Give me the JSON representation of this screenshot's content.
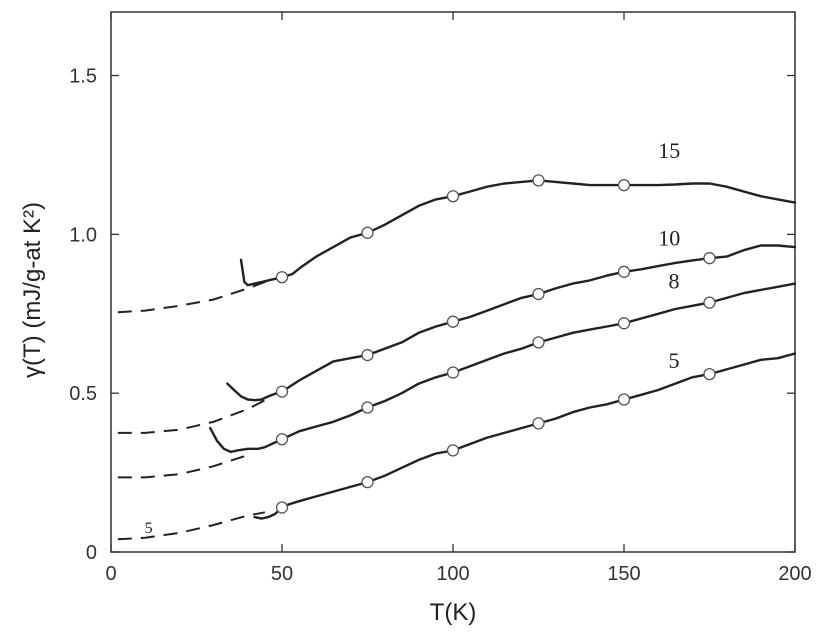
{
  "chart_data": {
    "type": "line",
    "xlabel": "T(K)",
    "ylabel": "γ(T)  (mJ/g-at K²)",
    "xlim": [
      0,
      200
    ],
    "ylim": [
      0,
      1.7
    ],
    "xticks": [
      0,
      50,
      100,
      150,
      200
    ],
    "xtick_labels": [
      "0",
      "50",
      "100",
      "150",
      "200"
    ],
    "yticks": [
      0,
      0.5,
      1.0,
      1.5
    ],
    "ytick_labels": [
      "0",
      "0.5",
      "1.0",
      "1.5"
    ],
    "grid": false,
    "line_color": "#222222",
    "marker_fill": "#ffffff",
    "series": [
      {
        "name": "15",
        "solid": {
          "x": [
            38,
            39,
            40,
            42,
            44,
            46,
            48,
            50,
            53,
            56,
            60,
            65,
            70,
            75,
            80,
            85,
            90,
            95,
            100,
            105,
            110,
            115,
            120,
            125,
            130,
            135,
            140,
            145,
            150,
            155,
            160,
            165,
            170,
            175,
            180,
            185,
            190,
            195,
            200
          ],
          "y": [
            0.92,
            0.85,
            0.84,
            0.845,
            0.85,
            0.855,
            0.86,
            0.865,
            0.875,
            0.9,
            0.93,
            0.96,
            0.99,
            1.005,
            1.03,
            1.06,
            1.09,
            1.11,
            1.12,
            1.135,
            1.15,
            1.16,
            1.165,
            1.17,
            1.165,
            1.16,
            1.155,
            1.155,
            1.155,
            1.155,
            1.155,
            1.157,
            1.16,
            1.16,
            1.15,
            1.135,
            1.12,
            1.11,
            1.1
          ]
        },
        "dashed": {
          "x": [
            2,
            10,
            20,
            30,
            40,
            45,
            50
          ],
          "y": [
            0.755,
            0.76,
            0.775,
            0.795,
            0.83,
            0.85,
            0.865
          ]
        },
        "markers": {
          "x": [
            50,
            75,
            100,
            125,
            150
          ],
          "y": [
            0.865,
            1.005,
            1.12,
            1.17,
            1.155
          ]
        },
        "label_at": [
          160,
          1.24
        ]
      },
      {
        "name": "10",
        "solid": {
          "x": [
            34,
            36,
            38,
            40,
            42,
            44,
            46,
            48,
            50,
            55,
            60,
            65,
            70,
            75,
            80,
            85,
            90,
            95,
            100,
            105,
            110,
            115,
            120,
            125,
            130,
            135,
            140,
            145,
            150,
            155,
            160,
            165,
            170,
            175,
            180,
            185,
            190,
            195,
            200
          ],
          "y": [
            0.53,
            0.51,
            0.49,
            0.48,
            0.478,
            0.48,
            0.49,
            0.498,
            0.505,
            0.54,
            0.57,
            0.6,
            0.61,
            0.62,
            0.64,
            0.66,
            0.69,
            0.71,
            0.725,
            0.74,
            0.76,
            0.78,
            0.8,
            0.812,
            0.83,
            0.845,
            0.855,
            0.87,
            0.882,
            0.89,
            0.9,
            0.91,
            0.918,
            0.925,
            0.93,
            0.95,
            0.965,
            0.965,
            0.96
          ]
        },
        "dashed": {
          "x": [
            2,
            10,
            20,
            30,
            40,
            45
          ],
          "y": [
            0.375,
            0.375,
            0.385,
            0.41,
            0.45,
            0.478
          ]
        },
        "markers": {
          "x": [
            50,
            75,
            100,
            125,
            150,
            175
          ],
          "y": [
            0.505,
            0.62,
            0.725,
            0.812,
            0.882,
            0.925
          ]
        },
        "label_at": [
          160,
          0.965
        ]
      },
      {
        "name": "8",
        "solid": {
          "x": [
            29,
            31,
            33,
            35,
            37,
            40,
            43,
            45,
            48,
            50,
            55,
            60,
            65,
            70,
            75,
            80,
            85,
            90,
            95,
            100,
            105,
            110,
            115,
            120,
            125,
            130,
            135,
            140,
            145,
            150,
            155,
            160,
            165,
            170,
            175,
            180,
            185,
            190,
            195,
            200
          ],
          "y": [
            0.39,
            0.35,
            0.325,
            0.315,
            0.32,
            0.325,
            0.325,
            0.33,
            0.345,
            0.355,
            0.38,
            0.395,
            0.41,
            0.43,
            0.455,
            0.475,
            0.5,
            0.53,
            0.55,
            0.565,
            0.585,
            0.605,
            0.625,
            0.64,
            0.66,
            0.675,
            0.69,
            0.7,
            0.71,
            0.72,
            0.735,
            0.75,
            0.765,
            0.775,
            0.785,
            0.8,
            0.815,
            0.825,
            0.835,
            0.845
          ]
        },
        "dashed": {
          "x": [
            2,
            10,
            20,
            30,
            40
          ],
          "y": [
            0.235,
            0.235,
            0.245,
            0.27,
            0.305
          ]
        },
        "markers": {
          "x": [
            50,
            75,
            100,
            125,
            150,
            175
          ],
          "y": [
            0.355,
            0.455,
            0.565,
            0.66,
            0.72,
            0.785
          ]
        },
        "label_at": [
          163,
          0.83
        ]
      },
      {
        "name": "5",
        "solid": {
          "x": [
            42,
            44,
            46,
            48,
            50,
            52,
            55,
            60,
            65,
            70,
            75,
            80,
            85,
            90,
            95,
            100,
            105,
            110,
            115,
            120,
            125,
            130,
            135,
            140,
            145,
            150,
            155,
            160,
            165,
            170,
            175,
            180,
            185,
            190,
            195,
            200
          ],
          "y": [
            0.11,
            0.105,
            0.11,
            0.12,
            0.14,
            0.15,
            0.16,
            0.175,
            0.19,
            0.205,
            0.22,
            0.24,
            0.265,
            0.29,
            0.31,
            0.32,
            0.34,
            0.36,
            0.375,
            0.39,
            0.405,
            0.42,
            0.44,
            0.455,
            0.465,
            0.48,
            0.495,
            0.51,
            0.53,
            0.55,
            0.56,
            0.575,
            0.59,
            0.605,
            0.61,
            0.625
          ]
        },
        "dashed": {
          "x": [
            2,
            10,
            20,
            30,
            40,
            45
          ],
          "y": [
            0.04,
            0.045,
            0.06,
            0.085,
            0.115,
            0.125
          ]
        },
        "markers": {
          "x": [
            50,
            75,
            100,
            125,
            150,
            175
          ],
          "y": [
            0.14,
            0.22,
            0.32,
            0.405,
            0.48,
            0.56
          ]
        },
        "label_at": [
          163,
          0.58
        ]
      }
    ],
    "annotations": [
      {
        "text": "5",
        "x": 11,
        "y": 0.06
      }
    ]
  }
}
